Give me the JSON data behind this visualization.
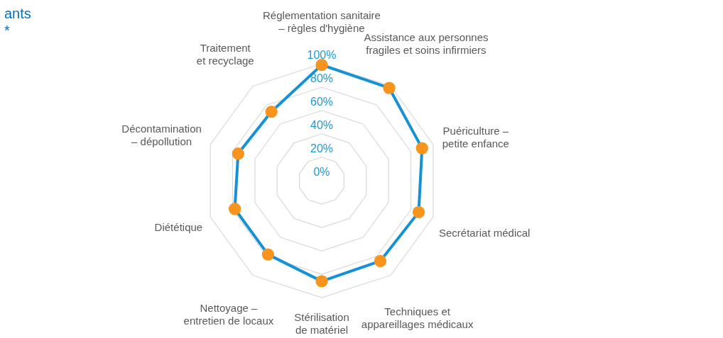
{
  "chart_data": {
    "type": "radar",
    "title": "ants",
    "subtitle": "*",
    "categories": [
      "Réglementation sanitaire – règles d'hygiène",
      "Assistance aux personnes fragiles et soins infirmiers",
      "Puériculture – petite enfance",
      "Secrétariat médical",
      "Techniques et appareillages médicaux",
      "Stérilisation de matériel",
      "Nettoyage – entretien de locaux",
      "Diététique",
      "Décontamination – dépollution",
      "Traitement et recyclage"
    ],
    "series": [
      {
        "color": "#1592d5",
        "colors": [
          "#f7941d",
          "#f7941d",
          "#f7941d",
          "#f7941d",
          "#f7941d",
          "#f7941d",
          "#f7941d",
          "#f7941d",
          "#f7941d",
          "#f7941d"
        ],
        "values": [
          99,
          98,
          90,
          87,
          85,
          86,
          78,
          78,
          75,
          73
        ]
      }
    ],
    "ylim": [
      0,
      100
    ],
    "yticks": [
      {
        "value": 0,
        "label": "0%"
      },
      {
        "value": 20,
        "label": "20%"
      },
      {
        "value": 40,
        "label": "40%"
      },
      {
        "value": 60,
        "label": "60%"
      },
      {
        "value": 80,
        "label": "80%"
      },
      {
        "value": 100,
        "label": "100%"
      }
    ],
    "grid": true,
    "marker": "circle",
    "line_style": "solid"
  }
}
